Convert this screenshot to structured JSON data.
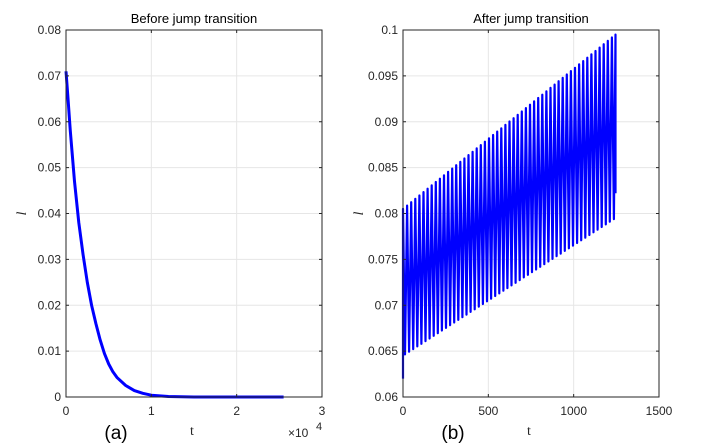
{
  "chart_data": [
    {
      "type": "line",
      "title": "Before jump transition",
      "xlabel": "t",
      "ylabel": "l",
      "panel_label": "(a)",
      "x_exponent_prefix": "×10",
      "x_exponent": "4",
      "xlim": [
        0,
        3
      ],
      "ylim": [
        0,
        0.08
      ],
      "xticks": [
        0,
        1,
        2,
        3
      ],
      "xtick_labels": [
        "0",
        "1",
        "2",
        "3"
      ],
      "yticks": [
        0,
        0.01,
        0.02,
        0.03,
        0.04,
        0.05,
        0.06,
        0.07,
        0.08
      ],
      "ytick_labels": [
        "0",
        "0.01",
        "0.02",
        "0.03",
        "0.04",
        "0.05",
        "0.06",
        "0.07",
        "0.08"
      ],
      "grid": true,
      "color": "#0000ff",
      "series": [
        {
          "x": [
            0,
            0.02,
            0.05,
            0.1,
            0.15,
            0.2,
            0.25,
            0.3,
            0.35,
            0.4,
            0.45,
            0.5,
            0.55,
            0.6,
            0.7,
            0.8,
            0.9,
            1.0,
            1.2,
            1.5,
            2.0,
            2.55
          ],
          "y": [
            0.071,
            0.066,
            0.058,
            0.047,
            0.038,
            0.031,
            0.025,
            0.02,
            0.016,
            0.0125,
            0.0095,
            0.0072,
            0.0055,
            0.0042,
            0.0025,
            0.0014,
            0.0008,
            0.0004,
            0.0001,
            0.0,
            0.0,
            0.0
          ]
        }
      ]
    },
    {
      "type": "line",
      "title": "After jump transition",
      "xlabel": "t",
      "ylabel": "l",
      "panel_label": "(b)",
      "xlim": [
        0,
        1500
      ],
      "ylim": [
        0.06,
        0.1
      ],
      "xticks": [
        0,
        500,
        1000,
        1500
      ],
      "xtick_labels": [
        "0",
        "500",
        "1000",
        "1500"
      ],
      "yticks": [
        0.06,
        0.065,
        0.07,
        0.075,
        0.08,
        0.085,
        0.09,
        0.095,
        0.1
      ],
      "ytick_labels": [
        "0.06",
        "0.065",
        "0.07",
        "0.075",
        "0.08",
        "0.085",
        "0.09",
        "0.095",
        "0.1"
      ],
      "grid": true,
      "color": "#0000ff",
      "oscillation": {
        "t_start": 0,
        "t_end": 1245,
        "period": 24,
        "upper_envelope": {
          "t": [
            0,
            1245
          ],
          "y": [
            0.0805,
            0.0995
          ]
        },
        "lower_envelope": {
          "t": [
            0,
            1245
          ],
          "y": [
            0.0645,
            0.0795
          ]
        },
        "start_min": 0.062,
        "end_value": 0.0822
      }
    }
  ]
}
